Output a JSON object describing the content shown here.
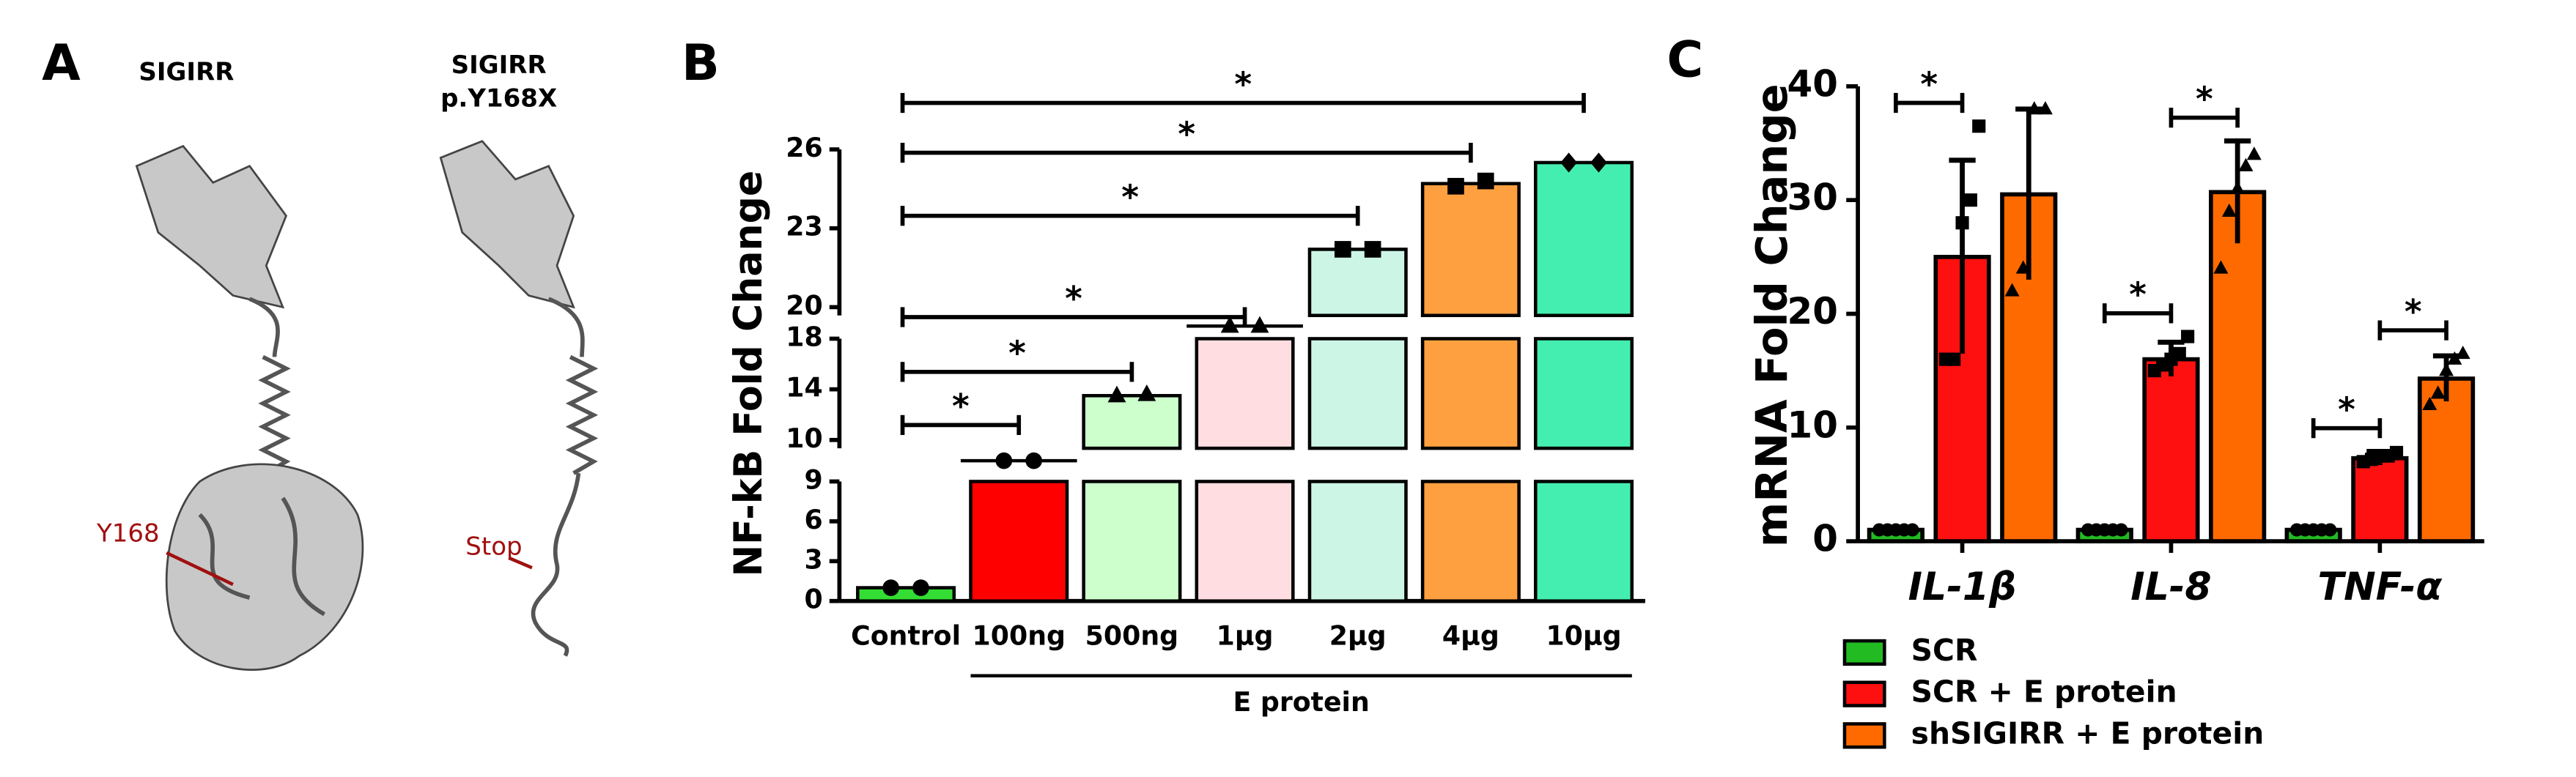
{
  "panel_a": {
    "letter": "A",
    "left_title": "SIGIRR",
    "right_title": [
      "SIGIRR",
      "p.Y168X"
    ],
    "left_label": "Y168",
    "right_label": "Stop"
  },
  "chart_data": [
    {
      "type": "bar",
      "panel": "B",
      "ylabel": "NF-kB Fold Change",
      "categories": [
        "Control",
        "100ng",
        "500ng",
        "1μg",
        "2μg",
        "4μg",
        "10μg"
      ],
      "values": [
        1.0,
        9.5,
        13.5,
        18.8,
        22.2,
        24.7,
        25.5
      ],
      "points": [
        [
          1.0,
          1.0
        ],
        [
          9.5,
          9.5
        ],
        [
          13.5,
          13.6
        ],
        [
          18.8,
          18.8
        ],
        [
          22.2,
          22.2
        ],
        [
          24.6,
          24.8
        ],
        [
          25.5,
          25.5
        ]
      ],
      "markers": [
        "circle",
        "circle",
        "triangle",
        "triangle",
        "square",
        "square",
        "diamond"
      ],
      "colors": [
        "#33dd33",
        "#ff0000",
        "#ccffcc",
        "#ffdde0",
        "#ccf5e6",
        "#ffa040",
        "#44eeb0"
      ],
      "y_segments": [
        {
          "ylim": [
            0,
            9
          ],
          "yticks": [
            0,
            3,
            6,
            9
          ]
        },
        {
          "ylim": [
            10,
            18
          ],
          "yticks": [
            10,
            14,
            18
          ]
        },
        {
          "ylim": [
            20,
            26
          ],
          "yticks": [
            20,
            23,
            26
          ]
        }
      ],
      "group_label": {
        "text": "E protein",
        "from": "100ng",
        "to": "10μg"
      },
      "significance": [
        {
          "pair": [
            "Control",
            "100ng"
          ],
          "label": "*"
        },
        {
          "pair": [
            "Control",
            "500ng"
          ],
          "label": "*"
        },
        {
          "pair": [
            "Control",
            "1μg"
          ],
          "label": "*"
        },
        {
          "pair": [
            "Control",
            "2μg"
          ],
          "label": "*"
        },
        {
          "pair": [
            "Control",
            "4μg"
          ],
          "label": "*"
        },
        {
          "pair": [
            "Control",
            "10μg"
          ],
          "label": "*"
        }
      ]
    },
    {
      "type": "grouped_bar",
      "panel": "C",
      "ylabel": "mRNA Fold Change",
      "categories": [
        "IL-1β",
        "IL-8",
        "TNF-α"
      ],
      "ylim": [
        0,
        40
      ],
      "yticks": [
        0,
        10,
        20,
        30,
        40
      ],
      "series": [
        {
          "name": "SCR",
          "color": "#22bb22",
          "marker": "circle",
          "values": [
            1,
            1,
            1
          ],
          "errors": [
            0.2,
            0.2,
            0.2
          ],
          "points": [
            [
              1,
              1,
              1,
              1,
              1
            ],
            [
              1,
              1,
              1,
              1,
              1
            ],
            [
              1,
              1,
              1,
              1,
              1
            ]
          ]
        },
        {
          "name": "SCR + E protein",
          "color": "#ff1010",
          "marker": "square",
          "values": [
            25,
            16,
            7.3
          ],
          "errors": [
            8.5,
            1.5,
            0.6
          ],
          "points": [
            [
              16,
              16,
              28,
              30,
              36.5
            ],
            [
              15,
              15.5,
              16,
              16.5,
              18
            ],
            [
              7,
              7.2,
              7.5,
              7.5,
              7.8
            ]
          ]
        },
        {
          "name": "shSIGIRR + E protein",
          "color": "#ff6a00",
          "marker": "triangle",
          "values": [
            30.5,
            30.7,
            14.3
          ],
          "errors": [
            7.5,
            4.5,
            2
          ],
          "points": [
            [
              22,
              24,
              38,
              38
            ],
            [
              24,
              29,
              31,
              33,
              34
            ],
            [
              12,
              13,
              15,
              16,
              16.5
            ]
          ]
        }
      ],
      "significance": [
        {
          "category": "IL-1β",
          "pair": [
            "SCR",
            "SCR + E protein"
          ],
          "label": "*"
        },
        {
          "category": "IL-8",
          "pair": [
            "SCR",
            "SCR + E protein"
          ],
          "label": "*"
        },
        {
          "category": "IL-8",
          "pair": [
            "SCR + E protein",
            "shSIGIRR + E protein"
          ],
          "label": "*"
        },
        {
          "category": "TNF-α",
          "pair": [
            "SCR",
            "SCR + E protein"
          ],
          "label": "*"
        },
        {
          "category": "TNF-α",
          "pair": [
            "SCR + E protein",
            "shSIGIRR + E protein"
          ],
          "label": "*"
        }
      ]
    }
  ]
}
